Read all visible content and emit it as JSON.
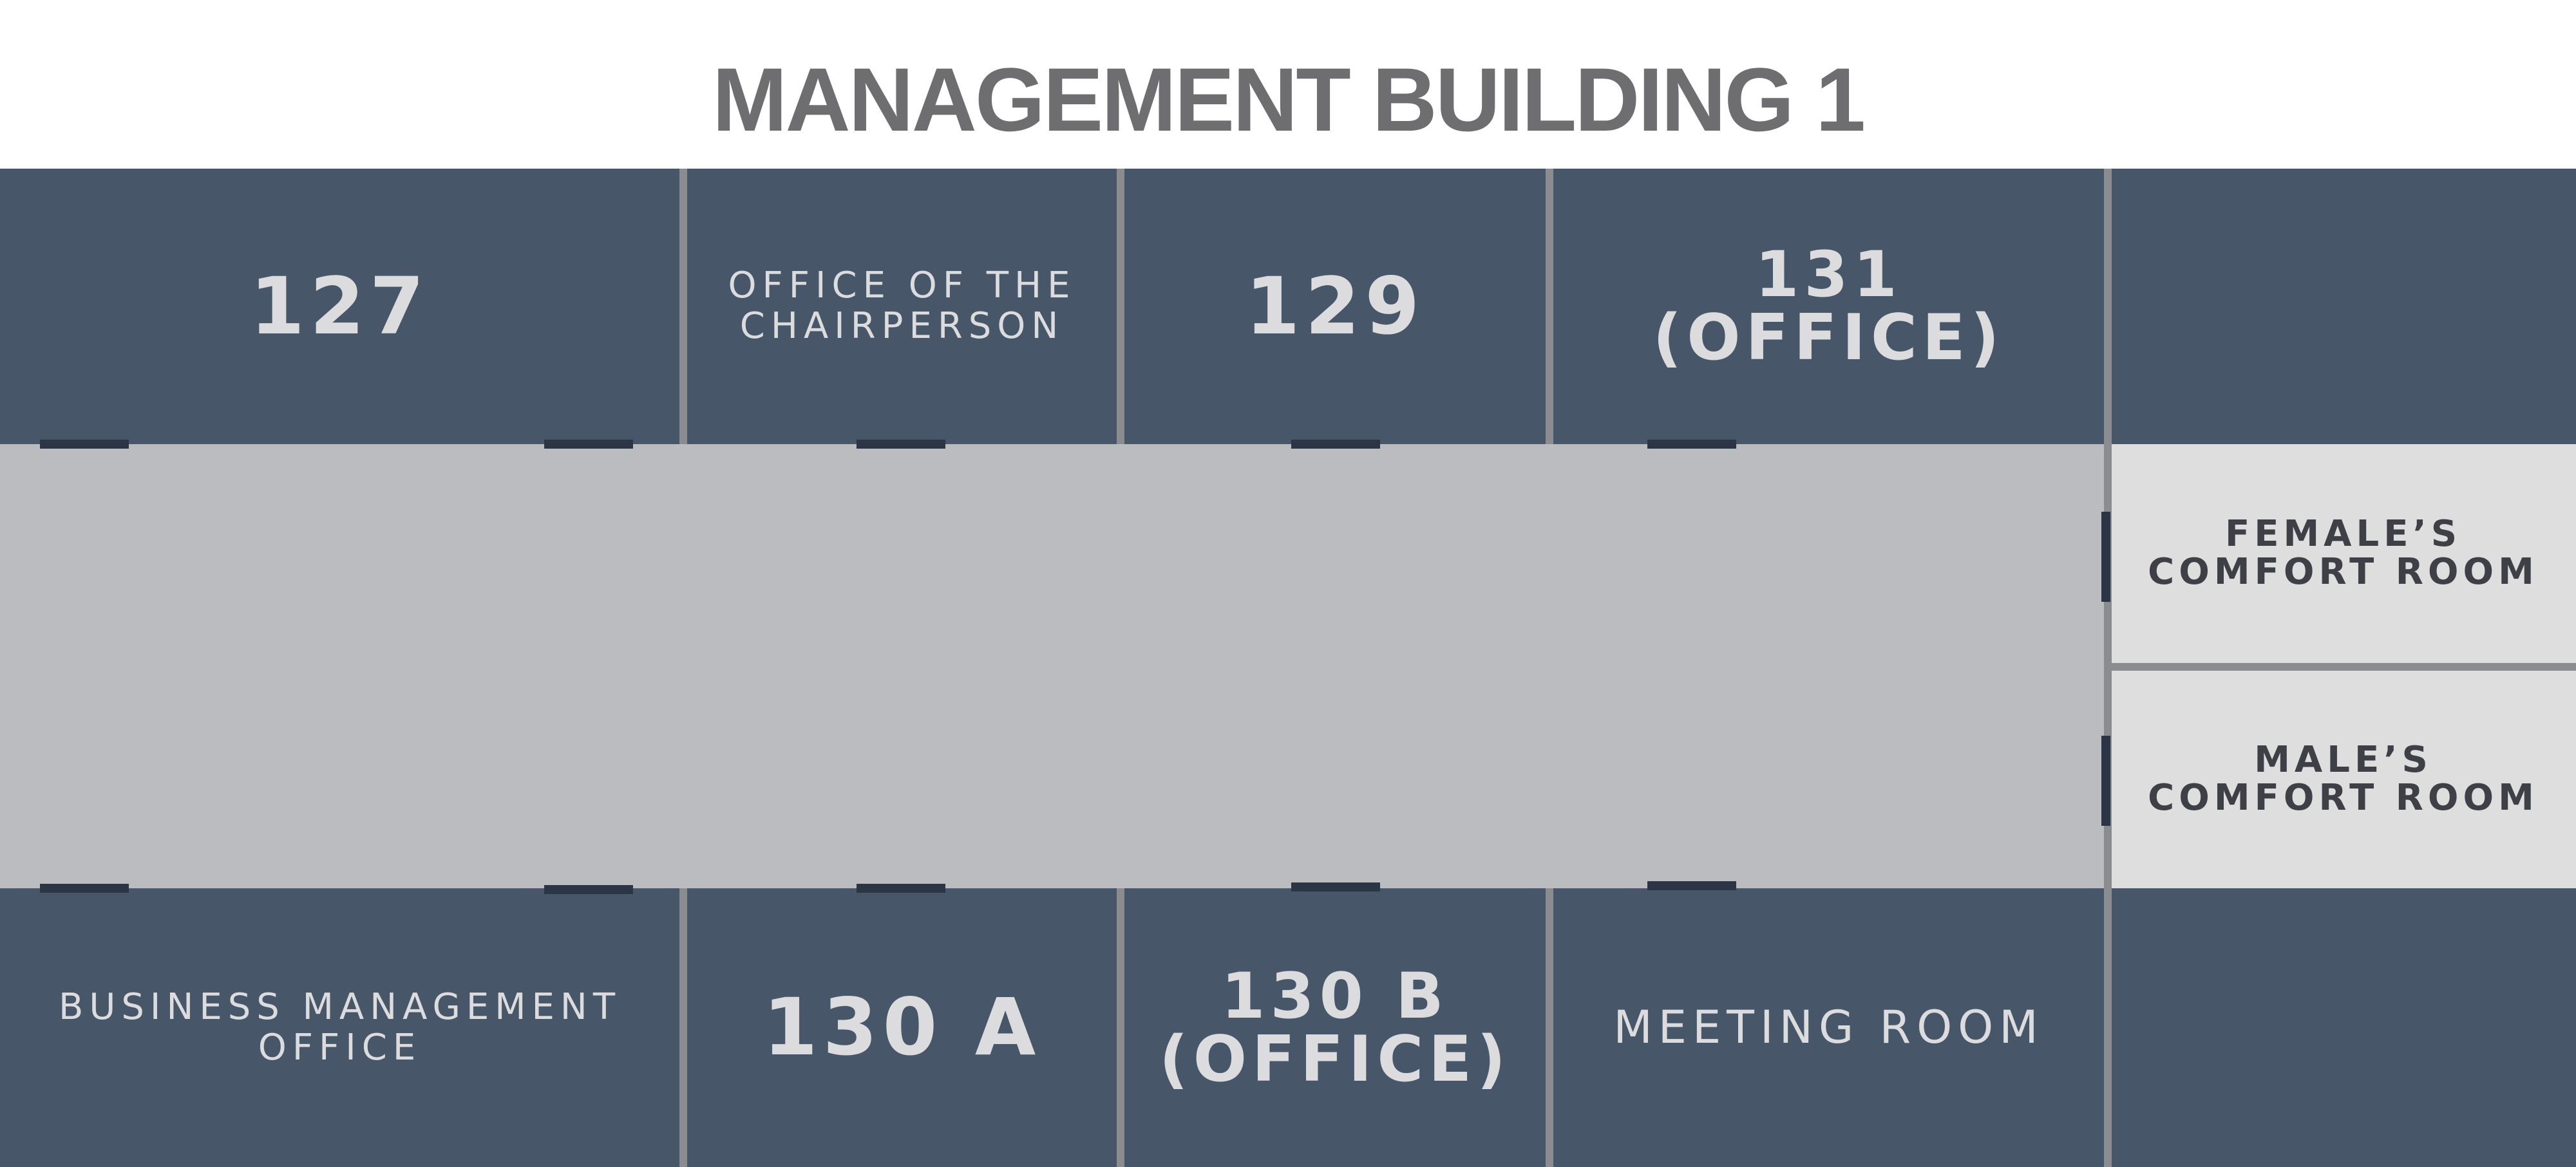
{
  "title": "MANAGEMENT BUILDING 1",
  "colors": {
    "room": "#475669",
    "room_text": "#dcdcde",
    "corridor": "#bbbcc0",
    "comfort_room": "#dedede",
    "comfort_room_text": "#3f3f48",
    "wall": "#8b8c90",
    "door": "#2c3546",
    "title": "#6e6e70"
  },
  "rooms": {
    "r127": "127",
    "chairperson": "OFFICE OF THE\nCHAIRPERSON",
    "r129": "129",
    "r131": "131\n(OFFICE)",
    "female_cr": "FEMALE’S\nCOMFORT ROOM",
    "male_cr": "MALE’S\nCOMFORT ROOM",
    "business_office": "BUSINESS MANAGEMENT\nOFFICE",
    "r130a": "130 A",
    "r130b": "130 B\n(OFFICE)",
    "meeting_room": "MEETING ROOM"
  }
}
